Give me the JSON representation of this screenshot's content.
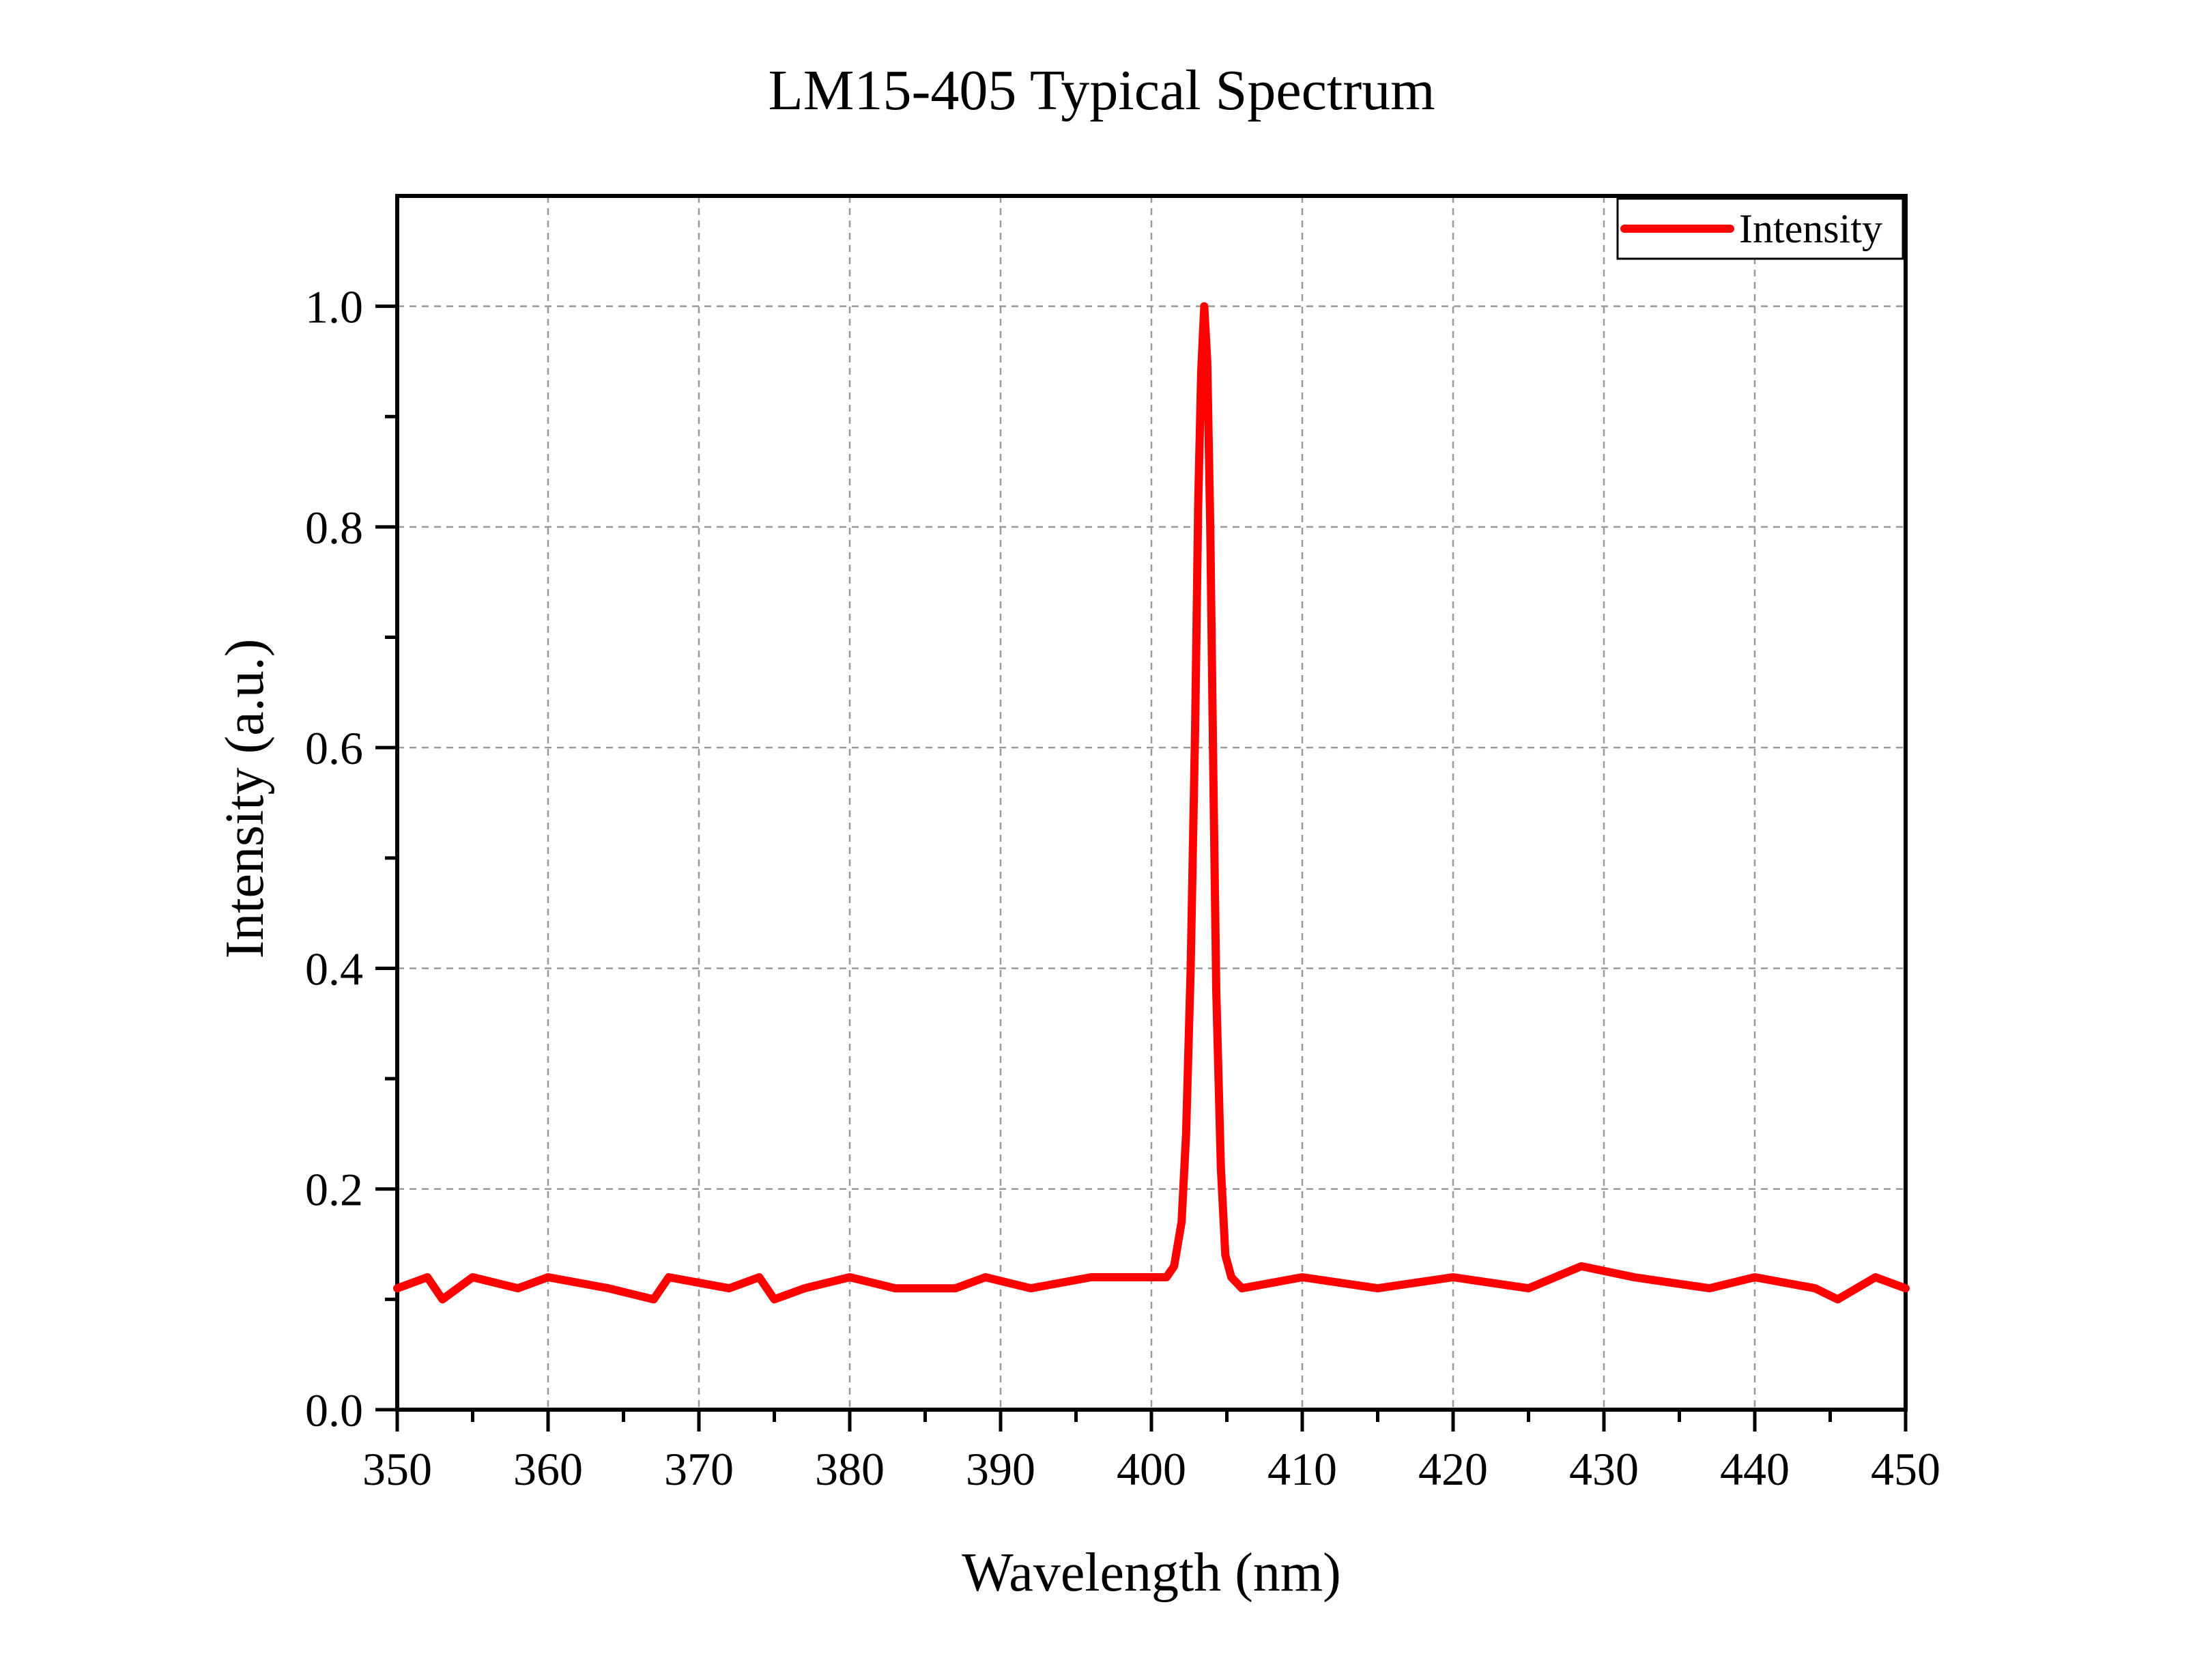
{
  "chart_data": {
    "type": "line",
    "title": "LM15-405 Typical Spectrum",
    "xlabel": "Wavelength (nm)",
    "ylabel": "Intensity (a.u.)",
    "xlim": [
      350,
      450
    ],
    "ylim": [
      0,
      1.1
    ],
    "xticks": [
      "350",
      "360",
      "370",
      "380",
      "390",
      "400",
      "410",
      "420",
      "430",
      "440",
      "450"
    ],
    "yticks": [
      "0.0",
      "0.2",
      "0.4",
      "0.6",
      "0.8",
      "1.0"
    ],
    "grid": true,
    "legend": {
      "position": "top-right",
      "entries": [
        "Intensity"
      ]
    },
    "series": [
      {
        "name": "Intensity",
        "color": "#ff0000",
        "x": [
          350,
          352,
          353,
          355,
          358,
          360,
          364,
          367,
          368,
          372,
          374,
          375,
          377,
          380,
          383,
          387,
          389,
          392,
          396,
          400,
          401,
          401.5,
          402,
          402.3,
          402.6,
          402.9,
          403.1,
          403.3,
          403.5,
          403.7,
          403.9,
          404.1,
          404.3,
          404.6,
          404.9,
          405.3,
          406,
          410,
          415,
          420,
          425,
          428.5,
          432,
          437,
          440,
          444,
          445.5,
          448,
          450
        ],
        "values": [
          0.11,
          0.12,
          0.1,
          0.12,
          0.11,
          0.12,
          0.11,
          0.1,
          0.12,
          0.11,
          0.12,
          0.1,
          0.11,
          0.12,
          0.11,
          0.11,
          0.12,
          0.11,
          0.12,
          0.12,
          0.12,
          0.13,
          0.17,
          0.25,
          0.4,
          0.62,
          0.82,
          0.94,
          1.0,
          0.95,
          0.8,
          0.58,
          0.38,
          0.22,
          0.14,
          0.12,
          0.11,
          0.12,
          0.11,
          0.12,
          0.11,
          0.13,
          0.12,
          0.11,
          0.12,
          0.11,
          0.1,
          0.12,
          0.11
        ]
      }
    ]
  }
}
